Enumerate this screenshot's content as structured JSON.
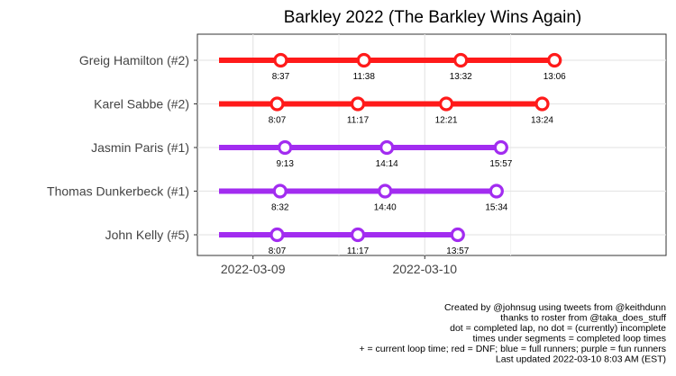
{
  "chart_data": {
    "type": "timeline",
    "title": "Barkley 2022 (The Barkley Wins Again)",
    "x_ticks": [
      "2022-03-09",
      "2022-03-10"
    ],
    "colors": {
      "dnf": "#ff1a1a",
      "fun": "#a22cf0",
      "full": "#1a5cff"
    },
    "runners": [
      {
        "name": "Greig Hamilton (#2)",
        "status": "dnf",
        "start": 0.0,
        "laps": [
          {
            "end": 8.62,
            "time": "8:37"
          },
          {
            "end": 20.25,
            "time": "11:38"
          },
          {
            "end": 33.78,
            "time": "13:32"
          },
          {
            "end": 46.88,
            "time": "13:06"
          }
        ]
      },
      {
        "name": "Karel Sabbe (#2)",
        "status": "dnf",
        "start": 0.0,
        "laps": [
          {
            "end": 8.12,
            "time": "8:07"
          },
          {
            "end": 19.4,
            "time": "11:17"
          },
          {
            "end": 31.75,
            "time": "12:21"
          },
          {
            "end": 45.15,
            "time": "13:24"
          }
        ]
      },
      {
        "name": "Jasmin Paris (#1)",
        "status": "fun",
        "start": 0.0,
        "laps": [
          {
            "end": 9.22,
            "time": "9:13"
          },
          {
            "end": 23.45,
            "time": "14:14"
          },
          {
            "end": 39.4,
            "time": "15:57"
          }
        ]
      },
      {
        "name": "Thomas Dunkerbeck (#1)",
        "status": "fun",
        "start": 0.0,
        "laps": [
          {
            "end": 8.53,
            "time": "8:32"
          },
          {
            "end": 23.2,
            "time": "14:40"
          },
          {
            "end": 38.77,
            "time": "15:34"
          }
        ]
      },
      {
        "name": "John Kelly (#5)",
        "status": "fun",
        "start": 0.0,
        "laps": [
          {
            "end": 8.12,
            "time": "8:07"
          },
          {
            "end": 19.4,
            "time": "11:17"
          },
          {
            "end": 33.35,
            "time": "13:57"
          }
        ]
      }
    ]
  },
  "caption": [
    "Created by @johnsug using tweets from @keithdunn",
    "thanks to roster from @taka_does_stuff",
    "dot = completed lap, no dot = (currently) incomplete",
    "times under segments = completed loop times",
    "+ = current loop time; red = DNF; blue = full runners; purple = fun runners",
    "Last updated 2022-03-10 8:03 AM (EST)"
  ]
}
